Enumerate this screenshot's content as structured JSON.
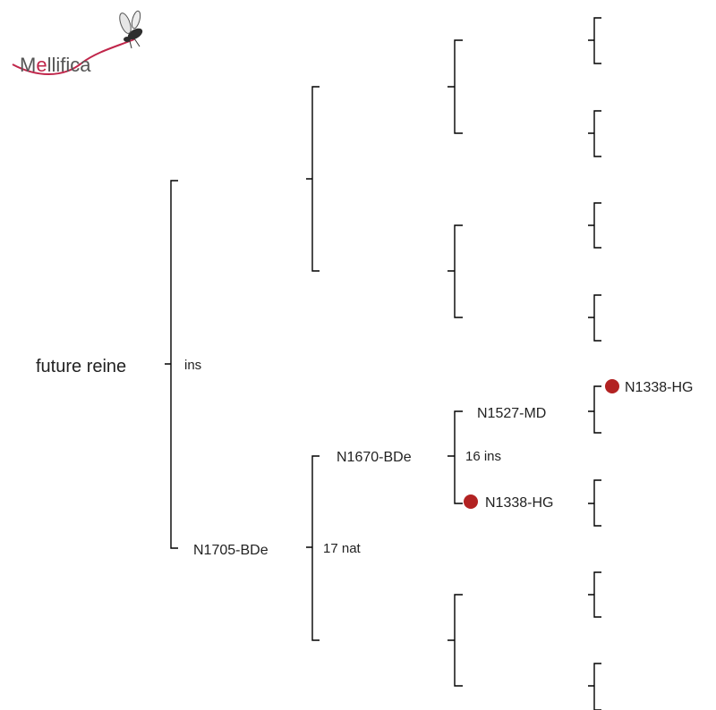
{
  "logo": {
    "text": "Mellifica",
    "accent_color": "#c0254a"
  },
  "colors": {
    "line": "#000000",
    "marker": "#b22222",
    "text": "#222222"
  },
  "tree": {
    "root": {
      "label": "future reine",
      "mating": "ins"
    },
    "mother": {
      "label": "N1705-BDe",
      "mating": "17 nat"
    },
    "grandmother": {
      "label": "N1670-BDe",
      "mating": "16 ins"
    },
    "ggm_dam": {
      "label": "N1527-MD"
    },
    "ggm_sire": {
      "label": "N1338-HG",
      "marked": true
    },
    "gggm": {
      "label": "N1338-HG",
      "marked": true
    }
  }
}
